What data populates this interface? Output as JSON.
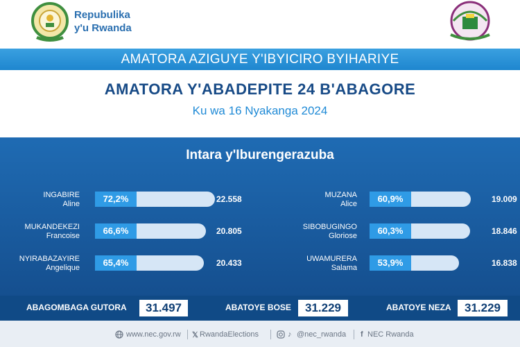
{
  "header": {
    "republic_line1": "Repubulika",
    "republic_line2": "y'u Rwanda"
  },
  "banner": {
    "text": "AMATORA AZIGUYE Y'IBYICIRO BYIHARIYE"
  },
  "title": "AMATORA Y'ABADEPITE 24 B'ABAGORE",
  "date": "Ku wa 16 Nyakanga 2024",
  "region": "Intara y'Iburengerazuba",
  "candidates": [
    {
      "last": "INGABIRE",
      "first": "Aline",
      "pct": "72,2%",
      "votes": "22.558",
      "share": 0.722
    },
    {
      "last": "MUKANDEKEZI",
      "first": "Francoise",
      "pct": "66,6%",
      "votes": "20.805",
      "share": 0.666
    },
    {
      "last": "NYIRABAZAYIRE",
      "first": "Angelique",
      "pct": "65,4%",
      "votes": "20.433",
      "share": 0.654
    },
    {
      "last": "MUZANA",
      "first": "Alice",
      "pct": "60,9%",
      "votes": "19.009",
      "share": 0.609
    },
    {
      "last": "SIBOBUGINGO",
      "first": "Gloriose",
      "pct": "60,3%",
      "votes": "18.846",
      "share": 0.603
    },
    {
      "last": "UWAMURERA",
      "first": "Salama",
      "pct": "53,9%",
      "votes": "16.838",
      "share": 0.539
    }
  ],
  "totals": {
    "registered_label": "ABAGOMBAGA GUTORA",
    "registered_value": "31.497",
    "voted_label": "ABATOYE BOSE",
    "voted_value": "31.229",
    "valid_label": "ABATOYE NEZA",
    "valid_value": "31.229"
  },
  "footer": {
    "website": "www.nec.gov.rw",
    "x_handle": "RwandaElections",
    "ig_tiktok": "@nec_rwanda",
    "facebook": "NEC Rwanda",
    "globe_icon": "globe-icon",
    "x_icon": "x-logo-icon",
    "ig_icon": "instagram-icon",
    "tiktok_icon": "tiktok-icon",
    "fb_icon": "facebook-icon"
  },
  "colors": {
    "accent": "#1e86cf",
    "panel": "#1b5fa3",
    "title": "#174a86",
    "pct": "#2f9be6"
  }
}
